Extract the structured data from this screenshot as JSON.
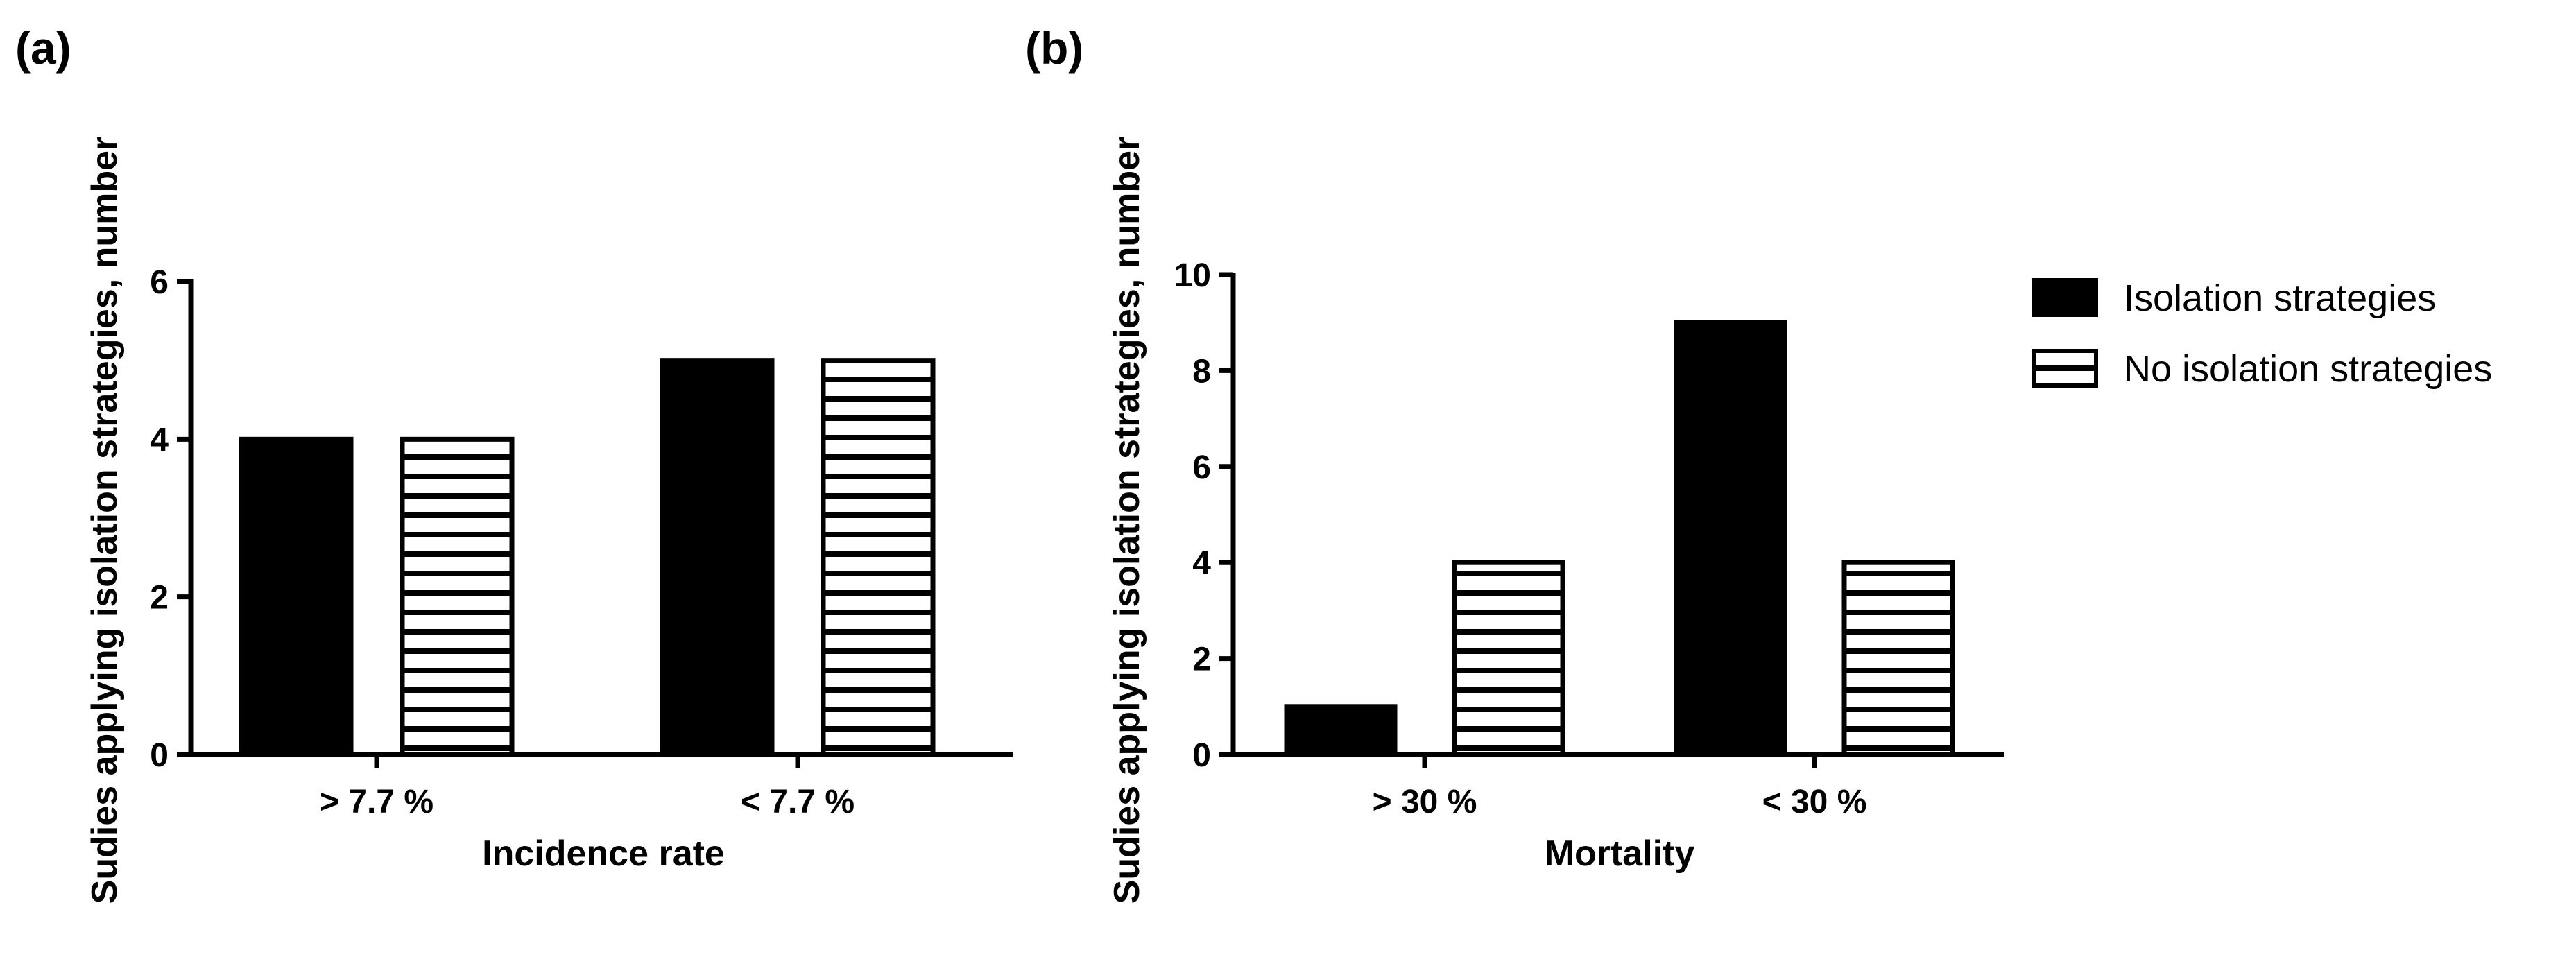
{
  "colors": {
    "bar_solid": "#000000",
    "bar_stripe": "#000000",
    "background": "#ffffff"
  },
  "legend": {
    "items": [
      {
        "label": "Isolation strategies",
        "style": "solid"
      },
      {
        "label": "No isolation strategies",
        "style": "striped"
      }
    ]
  },
  "chart_data": [
    {
      "type": "bar",
      "panel_label": "(a)",
      "categories": [
        "> 7.7 %",
        "< 7.7 %"
      ],
      "series": [
        {
          "name": "Isolation strategies",
          "values": [
            4,
            5
          ]
        },
        {
          "name": "No isolation strategies",
          "values": [
            4,
            5
          ]
        }
      ],
      "xlabel": "Incidence rate",
      "ylabel": "Sudies applying isolation strategies, number",
      "ylim": [
        0,
        6
      ],
      "yticks": [
        0,
        2,
        4,
        6
      ],
      "grid": false
    },
    {
      "type": "bar",
      "panel_label": "(b)",
      "categories": [
        "> 30 %",
        "< 30 %"
      ],
      "series": [
        {
          "name": "Isolation strategies",
          "values": [
            1,
            9
          ]
        },
        {
          "name": "No isolation strategies",
          "values": [
            4,
            4
          ]
        }
      ],
      "xlabel": "Mortality",
      "ylabel": "Sudies applying isolation strategies, number",
      "ylim": [
        0,
        10
      ],
      "yticks": [
        0,
        2,
        4,
        6,
        8,
        10
      ],
      "grid": false
    }
  ]
}
